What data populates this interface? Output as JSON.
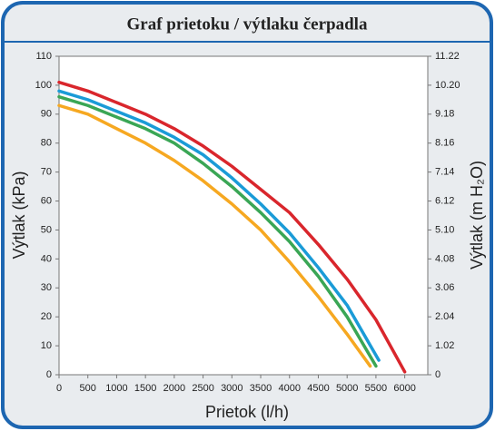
{
  "chart_data": {
    "type": "line",
    "title": "Graf prietoku / výtlaku čerpadla",
    "xlabel": "Prietok (l/h)",
    "ylabel": "Výtlak (kPa)",
    "y2label": "Výtlak (m H₂O)",
    "xlim": [
      0,
      6400
    ],
    "xticks": [
      0,
      500,
      1000,
      1500,
      2000,
      2500,
      3000,
      3500,
      4000,
      4500,
      5000,
      5500,
      6000
    ],
    "ylim": [
      0,
      110
    ],
    "yticks": [
      0,
      10,
      20,
      30,
      40,
      50,
      60,
      70,
      80,
      90,
      100,
      110
    ],
    "y2lim": [
      0,
      11.22
    ],
    "y2ticks": [
      0,
      1.02,
      2.04,
      3.06,
      4.08,
      {
        "value": 5.1,
        "label": "5.10"
      },
      6.12,
      7.14,
      8.16,
      9.18,
      {
        "value": 10.2,
        "label": "10.20"
      },
      11.22
    ],
    "series": [
      {
        "color": "#d9262c",
        "x": [
          0,
          500,
          1000,
          1500,
          2000,
          2500,
          3000,
          3500,
          4000,
          4500,
          5000,
          5500,
          6000
        ],
        "values": [
          101,
          98,
          94,
          90,
          85,
          79,
          72,
          64,
          56,
          45,
          33,
          19,
          1
        ]
      },
      {
        "color": "#1a9bd7",
        "x": [
          0,
          500,
          1000,
          1500,
          2000,
          2500,
          3000,
          3500,
          4000,
          4500,
          5000,
          5550
        ],
        "values": [
          98,
          95,
          91,
          87,
          82,
          76,
          68,
          59,
          49,
          37,
          24,
          5
        ]
      },
      {
        "color": "#3aa655",
        "x": [
          0,
          500,
          1000,
          1500,
          2000,
          2500,
          3000,
          3500,
          4000,
          4500,
          5000,
          5500
        ],
        "values": [
          96,
          93,
          89,
          85,
          80,
          73,
          65,
          56,
          46,
          34,
          20,
          3
        ]
      },
      {
        "color": "#f6a821",
        "x": [
          0,
          500,
          1000,
          1500,
          2000,
          2500,
          3000,
          3500,
          4000,
          4500,
          5000,
          5400
        ],
        "values": [
          93,
          90,
          85,
          80,
          74,
          67,
          59,
          50,
          39,
          27,
          14,
          3
        ]
      }
    ]
  }
}
